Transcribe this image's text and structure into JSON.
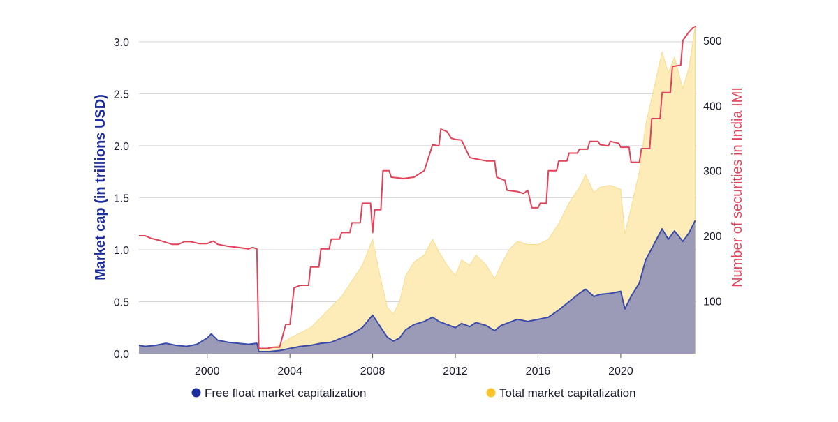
{
  "chart_data": {
    "type": "area",
    "title": "",
    "x_axis": {
      "ticks": [
        "2000",
        "2004",
        "2008",
        "2012",
        "2016",
        "2020"
      ],
      "range": [
        1996.7,
        2023.65
      ]
    },
    "y_left": {
      "label": "Market cap (in trillions USD)",
      "ticks": [
        "0.0",
        "0.5",
        "1.0",
        "1.5",
        "2.0",
        "2.5",
        "3.0"
      ],
      "range": [
        0,
        3.2
      ],
      "color": "#1e2d9c"
    },
    "y_right": {
      "label": "Number of securities in India IMI",
      "ticks": [
        "100",
        "200",
        "300",
        "400",
        "500"
      ],
      "range": [
        19,
        530
      ],
      "color": "#e0435a"
    },
    "grid": true,
    "legend": {
      "placement": "bottom",
      "items": [
        {
          "label": "Free float market capitalization",
          "color": "#1e2d9c"
        },
        {
          "label": "Total market capitalization",
          "color": "#fcc42a"
        }
      ]
    },
    "series": [
      {
        "name": "Free float market capitalization",
        "axis": "left",
        "fill": "#9b9bb8",
        "stroke": "#3a4aa8",
        "points": [
          [
            1996.7,
            0.08
          ],
          [
            1997.0,
            0.07
          ],
          [
            1997.5,
            0.08
          ],
          [
            1998.0,
            0.1
          ],
          [
            1998.5,
            0.08
          ],
          [
            1999.0,
            0.07
          ],
          [
            1999.5,
            0.09
          ],
          [
            2000.0,
            0.15
          ],
          [
            2000.2,
            0.19
          ],
          [
            2000.5,
            0.13
          ],
          [
            2001.0,
            0.11
          ],
          [
            2001.5,
            0.1
          ],
          [
            2002.0,
            0.09
          ],
          [
            2002.4,
            0.1
          ],
          [
            2002.5,
            0.02
          ],
          [
            2003.0,
            0.02
          ],
          [
            2003.5,
            0.03
          ],
          [
            2004.0,
            0.05
          ],
          [
            2004.5,
            0.07
          ],
          [
            2005.0,
            0.08
          ],
          [
            2005.5,
            0.1
          ],
          [
            2006.0,
            0.11
          ],
          [
            2006.5,
            0.15
          ],
          [
            2007.0,
            0.19
          ],
          [
            2007.5,
            0.25
          ],
          [
            2008.0,
            0.37
          ],
          [
            2008.3,
            0.28
          ],
          [
            2008.7,
            0.16
          ],
          [
            2009.0,
            0.12
          ],
          [
            2009.3,
            0.15
          ],
          [
            2009.6,
            0.23
          ],
          [
            2010.0,
            0.28
          ],
          [
            2010.5,
            0.31
          ],
          [
            2010.9,
            0.35
          ],
          [
            2011.2,
            0.31
          ],
          [
            2011.6,
            0.28
          ],
          [
            2012.0,
            0.25
          ],
          [
            2012.3,
            0.29
          ],
          [
            2012.7,
            0.26
          ],
          [
            2013.0,
            0.3
          ],
          [
            2013.5,
            0.27
          ],
          [
            2013.9,
            0.22
          ],
          [
            2014.2,
            0.27
          ],
          [
            2014.6,
            0.3
          ],
          [
            2015.0,
            0.33
          ],
          [
            2015.5,
            0.31
          ],
          [
            2016.0,
            0.33
          ],
          [
            2016.5,
            0.35
          ],
          [
            2017.0,
            0.42
          ],
          [
            2017.5,
            0.5
          ],
          [
            2018.0,
            0.58
          ],
          [
            2018.3,
            0.62
          ],
          [
            2018.7,
            0.55
          ],
          [
            2019.0,
            0.57
          ],
          [
            2019.5,
            0.58
          ],
          [
            2020.0,
            0.6
          ],
          [
            2020.2,
            0.43
          ],
          [
            2020.5,
            0.55
          ],
          [
            2020.9,
            0.68
          ],
          [
            2021.2,
            0.9
          ],
          [
            2021.6,
            1.05
          ],
          [
            2022.0,
            1.2
          ],
          [
            2022.3,
            1.1
          ],
          [
            2022.6,
            1.18
          ],
          [
            2023.0,
            1.08
          ],
          [
            2023.3,
            1.16
          ],
          [
            2023.6,
            1.28
          ]
        ]
      },
      {
        "name": "Total market capitalization",
        "axis": "left",
        "fill": "#fdebb8",
        "stroke": "#f8dc8e",
        "points": [
          [
            2002.5,
            0.04
          ],
          [
            2003.0,
            0.05
          ],
          [
            2003.5,
            0.08
          ],
          [
            2004.0,
            0.15
          ],
          [
            2004.5,
            0.2
          ],
          [
            2005.0,
            0.25
          ],
          [
            2005.5,
            0.35
          ],
          [
            2006.0,
            0.45
          ],
          [
            2006.5,
            0.55
          ],
          [
            2007.0,
            0.7
          ],
          [
            2007.5,
            0.85
          ],
          [
            2008.0,
            1.1
          ],
          [
            2008.3,
            0.8
          ],
          [
            2008.7,
            0.45
          ],
          [
            2009.0,
            0.38
          ],
          [
            2009.3,
            0.5
          ],
          [
            2009.6,
            0.75
          ],
          [
            2010.0,
            0.88
          ],
          [
            2010.5,
            0.95
          ],
          [
            2010.9,
            1.1
          ],
          [
            2011.2,
            0.98
          ],
          [
            2011.6,
            0.85
          ],
          [
            2012.0,
            0.75
          ],
          [
            2012.3,
            0.9
          ],
          [
            2012.7,
            0.85
          ],
          [
            2013.0,
            0.95
          ],
          [
            2013.5,
            0.85
          ],
          [
            2013.9,
            0.72
          ],
          [
            2014.2,
            0.85
          ],
          [
            2014.6,
            1.0
          ],
          [
            2015.0,
            1.08
          ],
          [
            2015.5,
            1.05
          ],
          [
            2016.0,
            1.05
          ],
          [
            2016.5,
            1.1
          ],
          [
            2017.0,
            1.25
          ],
          [
            2017.5,
            1.45
          ],
          [
            2018.0,
            1.6
          ],
          [
            2018.3,
            1.72
          ],
          [
            2018.7,
            1.55
          ],
          [
            2019.0,
            1.6
          ],
          [
            2019.5,
            1.62
          ],
          [
            2020.0,
            1.58
          ],
          [
            2020.2,
            1.15
          ],
          [
            2020.5,
            1.4
          ],
          [
            2020.9,
            1.75
          ],
          [
            2021.2,
            2.2
          ],
          [
            2021.6,
            2.55
          ],
          [
            2022.0,
            2.9
          ],
          [
            2022.3,
            2.7
          ],
          [
            2022.6,
            2.85
          ],
          [
            2023.0,
            2.55
          ],
          [
            2023.3,
            2.75
          ],
          [
            2023.6,
            3.15
          ]
        ]
      },
      {
        "name": "Number of securities in India IMI",
        "axis": "right",
        "stroke": "#e0435a",
        "points": [
          [
            1996.7,
            200
          ],
          [
            1997.0,
            200
          ],
          [
            1997.3,
            196
          ],
          [
            1997.7,
            193
          ],
          [
            1998.0,
            190
          ],
          [
            1998.3,
            187
          ],
          [
            1998.6,
            187
          ],
          [
            1998.9,
            191
          ],
          [
            1999.2,
            191
          ],
          [
            1999.6,
            188
          ],
          [
            2000.0,
            188
          ],
          [
            2000.3,
            192
          ],
          [
            2000.5,
            187
          ],
          [
            2001.0,
            184
          ],
          [
            2001.5,
            182
          ],
          [
            2002.0,
            180
          ],
          [
            2002.2,
            182
          ],
          [
            2002.4,
            180
          ],
          [
            2002.5,
            27
          ],
          [
            2002.9,
            27
          ],
          [
            2003.2,
            29
          ],
          [
            2003.5,
            29
          ],
          [
            2003.8,
            64
          ],
          [
            2004.0,
            64
          ],
          [
            2004.2,
            120
          ],
          [
            2004.5,
            124
          ],
          [
            2004.9,
            124
          ],
          [
            2005.0,
            152
          ],
          [
            2005.4,
            152
          ],
          [
            2005.5,
            180
          ],
          [
            2005.9,
            180
          ],
          [
            2006.0,
            195
          ],
          [
            2006.4,
            195
          ],
          [
            2006.5,
            205
          ],
          [
            2006.9,
            205
          ],
          [
            2007.0,
            220
          ],
          [
            2007.4,
            220
          ],
          [
            2007.5,
            250
          ],
          [
            2007.9,
            250
          ],
          [
            2008.0,
            205
          ],
          [
            2008.1,
            240
          ],
          [
            2008.4,
            240
          ],
          [
            2008.5,
            300
          ],
          [
            2008.8,
            300
          ],
          [
            2008.9,
            290
          ],
          [
            2009.5,
            288
          ],
          [
            2010.0,
            290
          ],
          [
            2010.5,
            300
          ],
          [
            2010.9,
            340
          ],
          [
            2011.2,
            338
          ],
          [
            2011.3,
            364
          ],
          [
            2011.6,
            360
          ],
          [
            2011.8,
            350
          ],
          [
            2012.0,
            348
          ],
          [
            2012.3,
            347
          ],
          [
            2012.7,
            320
          ],
          [
            2013.0,
            318
          ],
          [
            2013.5,
            315
          ],
          [
            2013.9,
            315
          ],
          [
            2014.0,
            290
          ],
          [
            2014.4,
            285
          ],
          [
            2014.5,
            270
          ],
          [
            2015.0,
            268
          ],
          [
            2015.3,
            265
          ],
          [
            2015.5,
            270
          ],
          [
            2015.7,
            243
          ],
          [
            2016.0,
            243
          ],
          [
            2016.1,
            250
          ],
          [
            2016.4,
            250
          ],
          [
            2016.5,
            300
          ],
          [
            2016.9,
            300
          ],
          [
            2017.0,
            315
          ],
          [
            2017.4,
            315
          ],
          [
            2017.5,
            327
          ],
          [
            2017.9,
            327
          ],
          [
            2018.0,
            333
          ],
          [
            2018.4,
            333
          ],
          [
            2018.5,
            345
          ],
          [
            2018.9,
            345
          ],
          [
            2019.0,
            340
          ],
          [
            2019.4,
            338
          ],
          [
            2019.5,
            345
          ],
          [
            2019.9,
            342
          ],
          [
            2020.0,
            336
          ],
          [
            2020.4,
            336
          ],
          [
            2020.5,
            313
          ],
          [
            2020.9,
            313
          ],
          [
            2021.0,
            334
          ],
          [
            2021.4,
            334
          ],
          [
            2021.5,
            380
          ],
          [
            2021.9,
            380
          ],
          [
            2022.0,
            420
          ],
          [
            2022.4,
            420
          ],
          [
            2022.5,
            460
          ],
          [
            2022.9,
            462
          ],
          [
            2023.0,
            500
          ],
          [
            2023.3,
            513
          ],
          [
            2023.5,
            520
          ],
          [
            2023.65,
            522
          ]
        ]
      }
    ]
  }
}
